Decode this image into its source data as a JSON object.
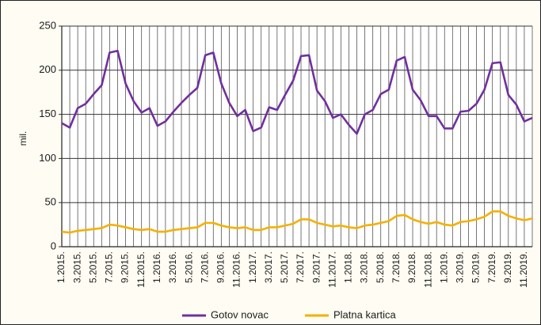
{
  "chart_data": {
    "type": "line",
    "ylabel": "mil.",
    "categories": [
      "1.2015.",
      null,
      "3.2015.",
      null,
      "5.2015.",
      null,
      "7.2015.",
      null,
      "9.2015.",
      null,
      "11.2015.",
      null,
      "1.2016.",
      null,
      "3.2016.",
      null,
      "5.2016.",
      null,
      "7.2016.",
      null,
      "9.2016.",
      null,
      "11.2016.",
      null,
      "1.2017.",
      null,
      "3.2017.",
      null,
      "5.2017.",
      null,
      "7.2017.",
      null,
      "9.2017.",
      null,
      "11.2017.",
      null,
      "1.2018.",
      null,
      "3.2018.",
      null,
      "5.2018.",
      null,
      "7.2018.",
      null,
      "9.2018.",
      null,
      "11.2018.",
      null,
      "1.2019.",
      null,
      "3.2019.",
      null,
      "5.2019.",
      null,
      "7.2019.",
      null,
      "9.2019.",
      null,
      "11.2019.",
      null
    ],
    "series": [
      {
        "name": "Gotov novac",
        "color": "#7030a0",
        "values": [
          140,
          135,
          157,
          162,
          173,
          183,
          220,
          222,
          185,
          165,
          152,
          157,
          137,
          142,
          153,
          163,
          172,
          180,
          217,
          220,
          185,
          163,
          148,
          155,
          131,
          135,
          158,
          155,
          172,
          188,
          216,
          217,
          177,
          165,
          146,
          150,
          138,
          128,
          150,
          155,
          173,
          178,
          211,
          215,
          178,
          166,
          148,
          148,
          134,
          134,
          153,
          154,
          162,
          178,
          208,
          209,
          172,
          161,
          142,
          146
        ]
      },
      {
        "name": "Platna kartica",
        "color": "#f5b000",
        "values": [
          17,
          16,
          18,
          19,
          20,
          21,
          25,
          24,
          22,
          20,
          19,
          20,
          17,
          17,
          19,
          20,
          21,
          22,
          27,
          27,
          24,
          22,
          21,
          22,
          19,
          19,
          22,
          22,
          24,
          26,
          31,
          31,
          27,
          25,
          23,
          24,
          22,
          21,
          24,
          25,
          27,
          29,
          35,
          36,
          31,
          28,
          26,
          28,
          25,
          24,
          28,
          29,
          31,
          34,
          40,
          40,
          35,
          32,
          30,
          32
        ]
      }
    ],
    "ylim": [
      0,
      250
    ],
    "yticks": [
      0,
      50,
      100,
      150,
      200,
      250
    ],
    "grid": true,
    "legend": "bottom"
  }
}
